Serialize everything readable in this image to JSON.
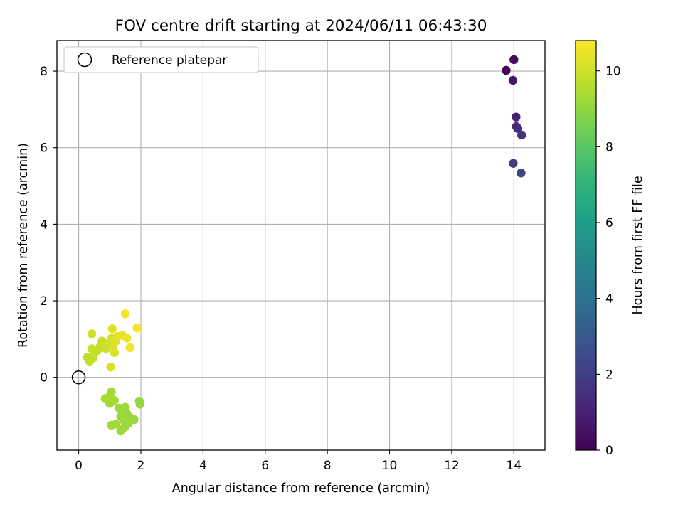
{
  "chart_data": {
    "type": "scatter",
    "title": "FOV centre drift starting at 2024/06/11 06:43:30",
    "xlabel": "Angular distance from reference (arcmin)",
    "ylabel": "Rotation from reference (arcmin)",
    "xlim": [
      -0.7,
      15.0
    ],
    "ylim": [
      -1.9,
      8.8
    ],
    "xticks": [
      0,
      2,
      4,
      6,
      8,
      10,
      12,
      14
    ],
    "yticks": [
      0,
      2,
      4,
      6,
      8
    ],
    "grid": true,
    "legend": {
      "placement": "top-left",
      "entries": [
        {
          "label": "Reference platepar",
          "marker": "open-circle"
        }
      ]
    },
    "reference_point": {
      "x": 0,
      "y": 0
    },
    "colorbar": {
      "label": "Hours from first FF file",
      "range": [
        0,
        10.8
      ],
      "ticks": [
        0,
        2,
        4,
        6,
        8,
        10
      ],
      "colormap": "viridis",
      "stops": [
        "#440154",
        "#482878",
        "#3e4989",
        "#31688e",
        "#26828e",
        "#1f9e89",
        "#35b779",
        "#6ece58",
        "#b5de2b",
        "#fde725"
      ]
    },
    "points": [
      {
        "x": 13.75,
        "y": 8.02,
        "c": 0.0
      },
      {
        "x": 14.0,
        "y": 8.3,
        "c": 0.3
      },
      {
        "x": 13.97,
        "y": 7.76,
        "c": 0.6
      },
      {
        "x": 14.07,
        "y": 6.8,
        "c": 1.0
      },
      {
        "x": 14.08,
        "y": 6.55,
        "c": 1.2
      },
      {
        "x": 14.13,
        "y": 6.5,
        "c": 1.4
      },
      {
        "x": 14.25,
        "y": 6.33,
        "c": 1.6
      },
      {
        "x": 13.98,
        "y": 5.59,
        "c": 1.9
      },
      {
        "x": 14.23,
        "y": 5.34,
        "c": 2.2
      },
      {
        "x": 1.05,
        "y": -0.38,
        "c": 9.3
      },
      {
        "x": 1.0,
        "y": -0.5,
        "c": 9.3
      },
      {
        "x": 0.85,
        "y": -0.55,
        "c": 9.4
      },
      {
        "x": 1.15,
        "y": -0.6,
        "c": 9.3
      },
      {
        "x": 1.0,
        "y": -0.68,
        "c": 9.3
      },
      {
        "x": 1.95,
        "y": -0.62,
        "c": 9.1
      },
      {
        "x": 1.97,
        "y": -0.7,
        "c": 9.1
      },
      {
        "x": 1.5,
        "y": -0.78,
        "c": 9.2
      },
      {
        "x": 1.3,
        "y": -0.8,
        "c": 9.2
      },
      {
        "x": 1.4,
        "y": -0.92,
        "c": 9.2
      },
      {
        "x": 1.55,
        "y": -0.95,
        "c": 9.1
      },
      {
        "x": 1.35,
        "y": -1.02,
        "c": 9.2
      },
      {
        "x": 1.65,
        "y": -1.05,
        "c": 9.1
      },
      {
        "x": 1.78,
        "y": -1.1,
        "c": 9.1
      },
      {
        "x": 1.45,
        "y": -1.12,
        "c": 9.2
      },
      {
        "x": 1.6,
        "y": -1.2,
        "c": 9.2
      },
      {
        "x": 1.2,
        "y": -1.22,
        "c": 9.3
      },
      {
        "x": 1.05,
        "y": -1.25,
        "c": 9.3
      },
      {
        "x": 1.5,
        "y": -1.28,
        "c": 9.2
      },
      {
        "x": 1.42,
        "y": -1.33,
        "c": 9.2
      },
      {
        "x": 1.35,
        "y": -1.4,
        "c": 9.2
      },
      {
        "x": 0.28,
        "y": 0.53,
        "c": 9.8
      },
      {
        "x": 0.35,
        "y": 0.42,
        "c": 9.8
      },
      {
        "x": 0.45,
        "y": 0.5,
        "c": 9.8
      },
      {
        "x": 0.42,
        "y": 0.75,
        "c": 9.9
      },
      {
        "x": 0.5,
        "y": 0.65,
        "c": 9.9
      },
      {
        "x": 0.6,
        "y": 0.7,
        "c": 9.8
      },
      {
        "x": 0.7,
        "y": 0.82,
        "c": 9.8
      },
      {
        "x": 0.75,
        "y": 0.95,
        "c": 9.9
      },
      {
        "x": 0.42,
        "y": 1.14,
        "c": 10.0
      },
      {
        "x": 0.88,
        "y": 0.75,
        "c": 10.0
      },
      {
        "x": 1.0,
        "y": 0.9,
        "c": 10.1
      },
      {
        "x": 1.05,
        "y": 1.02,
        "c": 10.2
      },
      {
        "x": 1.1,
        "y": 0.83,
        "c": 10.1
      },
      {
        "x": 1.2,
        "y": 0.95,
        "c": 10.2
      },
      {
        "x": 1.15,
        "y": 0.65,
        "c": 10.2
      },
      {
        "x": 1.08,
        "y": 1.27,
        "c": 10.3
      },
      {
        "x": 1.25,
        "y": 1.07,
        "c": 10.4
      },
      {
        "x": 1.4,
        "y": 1.1,
        "c": 10.4
      },
      {
        "x": 1.55,
        "y": 1.03,
        "c": 10.5
      },
      {
        "x": 1.5,
        "y": 1.66,
        "c": 10.6
      },
      {
        "x": 1.65,
        "y": 0.78,
        "c": 10.6
      },
      {
        "x": 1.88,
        "y": 1.29,
        "c": 10.7
      },
      {
        "x": 1.03,
        "y": 0.27,
        "c": 10.2
      }
    ]
  }
}
